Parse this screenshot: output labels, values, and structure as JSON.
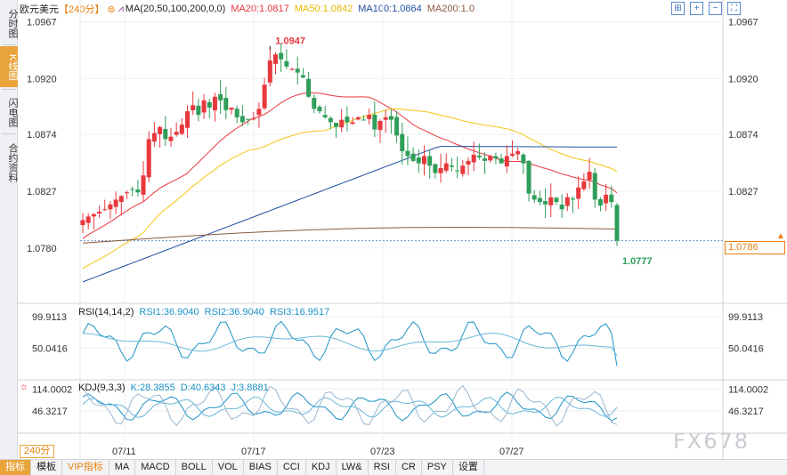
{
  "left_tabs": [
    {
      "label": "分时图",
      "active": false
    },
    {
      "label": "K线图",
      "active": true
    },
    {
      "label": "闪电图",
      "active": false
    },
    {
      "label": "合约资料",
      "active": false
    }
  ],
  "header": {
    "symbol": "欧元美元",
    "period": "【240分】",
    "ma_label": "MA(20,50,100,200,0,0)",
    "ma20": "MA20:1.0817",
    "ma50": "MA50:1.0842",
    "ma100": "MA100:1.0864",
    "ma200": "MA200:1.0"
  },
  "price_axis": {
    "ticks": [
      "1.0967",
      "1.0920",
      "1.0874",
      "1.0827",
      "1.0780"
    ]
  },
  "annotations": {
    "high": "1.0947",
    "low": "1.0777",
    "current": "1.0786"
  },
  "rsi": {
    "label": "RSI(14,14,2)",
    "rsi1": "RSI1:36.9040",
    "rsi2": "RSI2:36.9040",
    "rsi3": "RSI3:16.9517",
    "ticks": [
      "99.9113",
      "50.0416"
    ]
  },
  "kdj": {
    "label": "KDJ(9,3,3)",
    "k": "K:28.3855",
    "d": "D:40.6343",
    "j": "J:3.8881",
    "ticks": [
      "114.0002",
      "46.3217"
    ]
  },
  "date_axis": [
    "07/11",
    "07/17",
    "07/23",
    "07/27"
  ],
  "period_selector": "240分",
  "watermark": "FX678",
  "toolbar": [
    "指标",
    "模板",
    "VIP指标",
    "MA",
    "MACD",
    "BOLL",
    "VOL",
    "BIAS",
    "CCI",
    "KDJ",
    "LW&",
    "RSI",
    "CR",
    "PSY",
    "设置"
  ],
  "colors": {
    "up": "#e8383d",
    "down": "#2f9e59",
    "ma20": "#e8383d",
    "ma50": "#f5c518",
    "ma100": "#1f4fa3",
    "ma200": "#8b5a3c",
    "rsi1": "#1c93c7",
    "rsi2": "#6ab6d8",
    "accent": "#e8800c"
  },
  "chart_data": {
    "type": "candlestick",
    "price_range": [
      1.0735,
      1.0985
    ],
    "candles_close": [
      1.0803,
      1.0806,
      1.0808,
      1.081,
      1.0812,
      1.0816,
      1.082,
      1.0823,
      1.0826,
      1.0828,
      1.0826,
      1.084,
      1.087,
      1.0875,
      1.088,
      1.087,
      1.0872,
      1.0876,
      1.0882,
      1.0893,
      1.0898,
      1.089,
      1.0902,
      1.0896,
      1.0905,
      1.0902,
      1.0894,
      1.0896,
      1.0888,
      1.0884,
      1.0886,
      1.0887,
      1.0895,
      1.0915,
      1.0935,
      1.094,
      1.0936,
      1.093,
      1.0928,
      1.0925,
      1.0921,
      1.0905,
      1.0895,
      1.0893,
      1.0888,
      1.0884,
      1.088,
      1.0886,
      1.0884,
      1.0884,
      1.0888,
      1.0886,
      1.089,
      1.0878,
      1.0885,
      1.0888,
      1.0886,
      1.0873,
      1.086,
      1.0856,
      1.0852,
      1.085,
      1.0856,
      1.0848,
      1.0842,
      1.0846,
      1.085,
      1.0847,
      1.0844,
      1.0848,
      1.0852,
      1.0857,
      1.0855,
      1.0852,
      1.0856,
      1.0854,
      1.085,
      1.0856,
      1.0858,
      1.086,
      1.085,
      1.0825,
      1.082,
      1.0818,
      1.0816,
      1.0822,
      1.0818,
      1.0812,
      1.0822,
      1.082,
      1.083,
      1.0835,
      1.0843,
      1.082,
      1.0815,
      1.0824,
      1.0818,
      1.0786
    ],
    "rsi_range": [
      0,
      120
    ],
    "kdj_range": [
      -20,
      140
    ]
  }
}
